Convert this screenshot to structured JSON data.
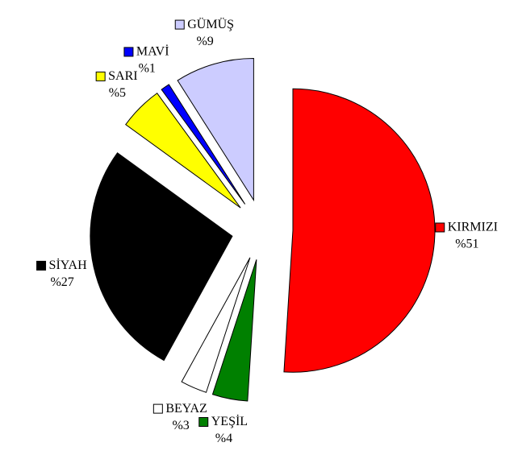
{
  "chart_data": {
    "type": "pie",
    "categories": [
      "KIRMIZI",
      "YEŞİL",
      "BEYAZ",
      "SİYAH",
      "SARI",
      "MAVİ",
      "GÜMÜŞ"
    ],
    "values": [
      51,
      4,
      3,
      27,
      5,
      1,
      9
    ],
    "value_labels": [
      "%51",
      "%4",
      "%3",
      "%27",
      "%5",
      "%1",
      "%9"
    ],
    "colors": [
      "#ff0000",
      "#008000",
      "#ffffff",
      "#000000",
      "#ffff00",
      "#0000ff",
      "#ccccff"
    ],
    "start_angle": 0,
    "direction": "clockwise"
  }
}
